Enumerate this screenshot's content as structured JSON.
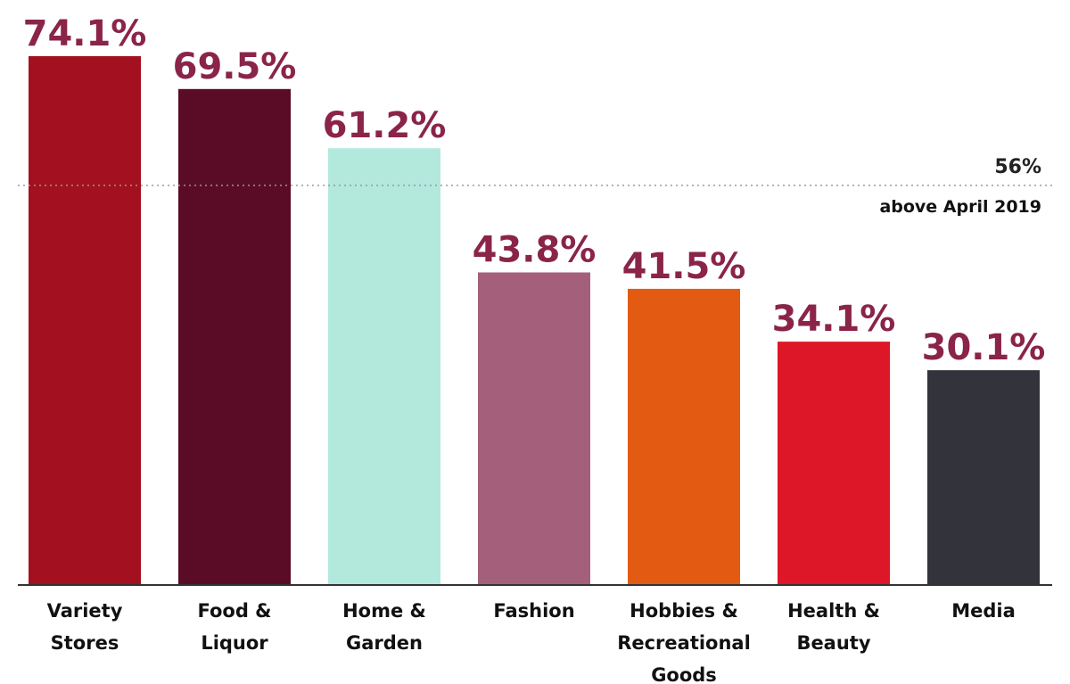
{
  "chart_data": {
    "type": "bar",
    "categories": [
      [
        "Variety",
        "Stores"
      ],
      [
        "Food &",
        "Liquor"
      ],
      [
        "Home &",
        "Garden"
      ],
      [
        "Fashion"
      ],
      [
        "Hobbies &",
        "Recreational",
        "Goods"
      ],
      [
        "Health &",
        "Beauty"
      ],
      [
        "Media"
      ]
    ],
    "values": [
      74.1,
      69.5,
      61.2,
      43.8,
      41.5,
      34.1,
      30.1
    ],
    "value_labels": [
      "74.1%",
      "69.5%",
      "61.2%",
      "43.8%",
      "41.5%",
      "34.1%",
      "30.1%"
    ],
    "bar_colors": [
      "#a3101f",
      "#5a0b26",
      "#b3e8dd",
      "#a4607a",
      "#e35b13",
      "#dd1727",
      "#33333b"
    ],
    "label_color": "#8a2449",
    "reference_line": {
      "value": 56,
      "value_label": "56%",
      "text": "above April 2019"
    },
    "ylim": [
      0,
      74.1
    ],
    "grid": false,
    "title": "",
    "xlabel": "",
    "ylabel": ""
  }
}
